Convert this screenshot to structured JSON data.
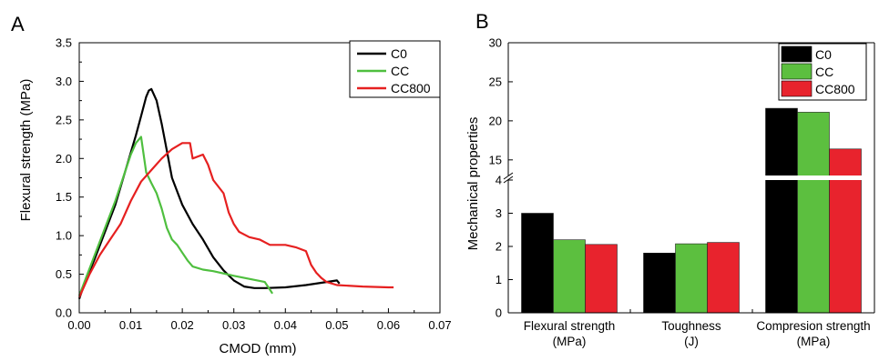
{
  "panels": [
    {
      "letter": "A"
    },
    {
      "letter": "B"
    }
  ],
  "chart_data": [
    {
      "type": "line",
      "panel": "A",
      "xlabel": "CMOD (mm)",
      "ylabel": "Flexural strength (MPa)",
      "xlim": [
        0,
        0.07
      ],
      "ylim": [
        0,
        3.5
      ],
      "x_ticks": [
        0,
        0.01,
        0.02,
        0.03,
        0.04,
        0.05,
        0.06,
        0.07
      ],
      "x_tick_labels": [
        "0.00",
        "0.01",
        "0.02",
        "0.03",
        "0.04",
        "0.05",
        "0.06",
        "0.07"
      ],
      "y_ticks": [
        0,
        0.5,
        1,
        1.5,
        2,
        2.5,
        3,
        3.5
      ],
      "y_tick_labels": [
        "0.0",
        "0.5",
        "1.0",
        "1.5",
        "2.0",
        "2.5",
        "3.0",
        "3.5"
      ],
      "legend_position": "top-right",
      "grid": false,
      "series": [
        {
          "name": "C0",
          "color": "#000000",
          "points": [
            [
              0.0,
              0.18
            ],
            [
              0.001,
              0.38
            ],
            [
              0.003,
              0.7
            ],
            [
              0.005,
              1.05
            ],
            [
              0.007,
              1.4
            ],
            [
              0.009,
              1.85
            ],
            [
              0.011,
              2.3
            ],
            [
              0.012,
              2.55
            ],
            [
              0.013,
              2.8
            ],
            [
              0.0135,
              2.88
            ],
            [
              0.014,
              2.9
            ],
            [
              0.015,
              2.75
            ],
            [
              0.016,
              2.45
            ],
            [
              0.017,
              2.1
            ],
            [
              0.018,
              1.75
            ],
            [
              0.02,
              1.4
            ],
            [
              0.022,
              1.15
            ],
            [
              0.024,
              0.95
            ],
            [
              0.026,
              0.72
            ],
            [
              0.028,
              0.55
            ],
            [
              0.03,
              0.42
            ],
            [
              0.032,
              0.34
            ],
            [
              0.034,
              0.32
            ],
            [
              0.036,
              0.32
            ],
            [
              0.04,
              0.33
            ],
            [
              0.044,
              0.36
            ],
            [
              0.048,
              0.4
            ],
            [
              0.05,
              0.42
            ],
            [
              0.0505,
              0.38
            ]
          ]
        },
        {
          "name": "CC",
          "color": "#4fbf3f",
          "points": [
            [
              0.0,
              0.22
            ],
            [
              0.001,
              0.4
            ],
            [
              0.003,
              0.75
            ],
            [
              0.005,
              1.1
            ],
            [
              0.007,
              1.45
            ],
            [
              0.008,
              1.65
            ],
            [
              0.009,
              1.85
            ],
            [
              0.01,
              2.05
            ],
            [
              0.011,
              2.2
            ],
            [
              0.012,
              2.28
            ],
            [
              0.0125,
              2.05
            ],
            [
              0.013,
              1.82
            ],
            [
              0.014,
              1.68
            ],
            [
              0.015,
              1.55
            ],
            [
              0.016,
              1.35
            ],
            [
              0.017,
              1.1
            ],
            [
              0.018,
              0.95
            ],
            [
              0.019,
              0.88
            ],
            [
              0.02,
              0.78
            ],
            [
              0.021,
              0.68
            ],
            [
              0.022,
              0.6
            ],
            [
              0.024,
              0.56
            ],
            [
              0.026,
              0.54
            ],
            [
              0.03,
              0.48
            ],
            [
              0.033,
              0.44
            ],
            [
              0.036,
              0.4
            ],
            [
              0.037,
              0.3
            ],
            [
              0.0375,
              0.25
            ]
          ]
        },
        {
          "name": "CC800",
          "color": "#e62020",
          "points": [
            [
              0.0,
              0.2
            ],
            [
              0.002,
              0.5
            ],
            [
              0.004,
              0.75
            ],
            [
              0.006,
              0.95
            ],
            [
              0.008,
              1.15
            ],
            [
              0.01,
              1.45
            ],
            [
              0.012,
              1.7
            ],
            [
              0.014,
              1.85
            ],
            [
              0.016,
              2.0
            ],
            [
              0.018,
              2.12
            ],
            [
              0.02,
              2.2
            ],
            [
              0.0215,
              2.2
            ],
            [
              0.022,
              2.0
            ],
            [
              0.024,
              2.05
            ],
            [
              0.025,
              1.92
            ],
            [
              0.026,
              1.72
            ],
            [
              0.028,
              1.55
            ],
            [
              0.029,
              1.3
            ],
            [
              0.03,
              1.15
            ],
            [
              0.031,
              1.05
            ],
            [
              0.033,
              0.98
            ],
            [
              0.035,
              0.95
            ],
            [
              0.037,
              0.88
            ],
            [
              0.04,
              0.88
            ],
            [
              0.042,
              0.85
            ],
            [
              0.044,
              0.8
            ],
            [
              0.045,
              0.62
            ],
            [
              0.046,
              0.52
            ],
            [
              0.047,
              0.45
            ],
            [
              0.048,
              0.4
            ],
            [
              0.05,
              0.36
            ],
            [
              0.055,
              0.34
            ],
            [
              0.06,
              0.33
            ],
            [
              0.061,
              0.33
            ]
          ]
        }
      ]
    },
    {
      "type": "bar",
      "panel": "B",
      "xlabel": "",
      "ylabel": "Mechanical properties",
      "categories": [
        [
          "Flexural strength",
          "(MPa)"
        ],
        [
          "Toughness",
          "(J)"
        ],
        [
          "Compresion strength",
          "(MPa)"
        ]
      ],
      "ylim_lower": [
        0,
        4
      ],
      "ylim_upper": [
        13,
        30
      ],
      "y_ticks_lower": [
        0,
        1,
        2,
        3,
        4
      ],
      "y_ticks_upper": [
        15,
        20,
        25,
        30
      ],
      "axis_break": true,
      "legend_position": "top-right",
      "grid": false,
      "series": [
        {
          "name": "C0",
          "color": "#000000",
          "values": [
            3.0,
            1.8,
            21.6
          ]
        },
        {
          "name": "CC",
          "color": "#5cbf3f",
          "values": [
            2.2,
            2.08,
            21.1
          ]
        },
        {
          "name": "CC800",
          "color": "#e8232d",
          "values": [
            2.06,
            2.12,
            16.4
          ]
        }
      ]
    }
  ]
}
